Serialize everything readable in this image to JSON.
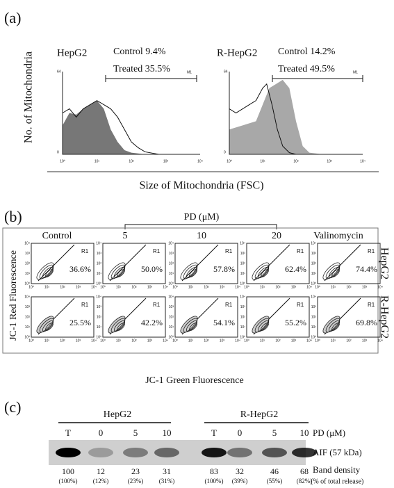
{
  "panel_a": {
    "label": "(a)",
    "y_label": "No. of Mitochondria",
    "x_label": "Size of Mitochondria (FSC)",
    "x_ticks": [
      "10⁰",
      "10¹",
      "10²",
      "10³",
      "10⁴"
    ],
    "y_ticks": [
      "64",
      "0"
    ],
    "gate": "M1",
    "plots": [
      {
        "cell": "HepG2",
        "control": "Control 9.4%",
        "treated": "Treated 35.5%"
      },
      {
        "cell": "R-HepG2",
        "control": "Control 14.2%",
        "treated": "Treated 49.5%"
      }
    ]
  },
  "panel_b": {
    "label": "(b)",
    "treatment": "PD (μM)",
    "columns": [
      "Control",
      "5",
      "10",
      "20",
      "Valinomycin"
    ],
    "rows": [
      {
        "name": "HepG2",
        "values": [
          "36.6%",
          "50.0%",
          "57.8%",
          "62.4%",
          "74.4%"
        ]
      },
      {
        "name": "R-HepG2",
        "values": [
          "25.5%",
          "42.2%",
          "54.1%",
          "55.2%",
          "69.8%"
        ]
      }
    ],
    "axis_ticks": [
      "10⁰",
      "10¹",
      "10²",
      "10³",
      "10⁴"
    ],
    "gate": "R1",
    "y_label": "JC-1 Red Fluorescence",
    "x_label": "JC-1 Green Fluorescence"
  },
  "panel_c": {
    "label": "(c)",
    "groups": [
      {
        "name": "HepG2",
        "lanes": [
          "T",
          "0",
          "5",
          "10"
        ],
        "density": [
          "100",
          "12",
          "23",
          "31"
        ],
        "percent": [
          "(100%)",
          "(12%)",
          "(23%)",
          "(31%)"
        ]
      },
      {
        "name": "R-HepG2",
        "lanes": [
          "T",
          "0",
          "5",
          "10"
        ],
        "density": [
          "83",
          "32",
          "46",
          "68"
        ],
        "percent": [
          "(100%)",
          "(39%)",
          "(55%)",
          "(82%)"
        ]
      }
    ],
    "treatment": "PD (μM)",
    "protein": "AIF (57 kDa)",
    "density_label": "Band density",
    "percent_label": "(% of total release)"
  }
}
